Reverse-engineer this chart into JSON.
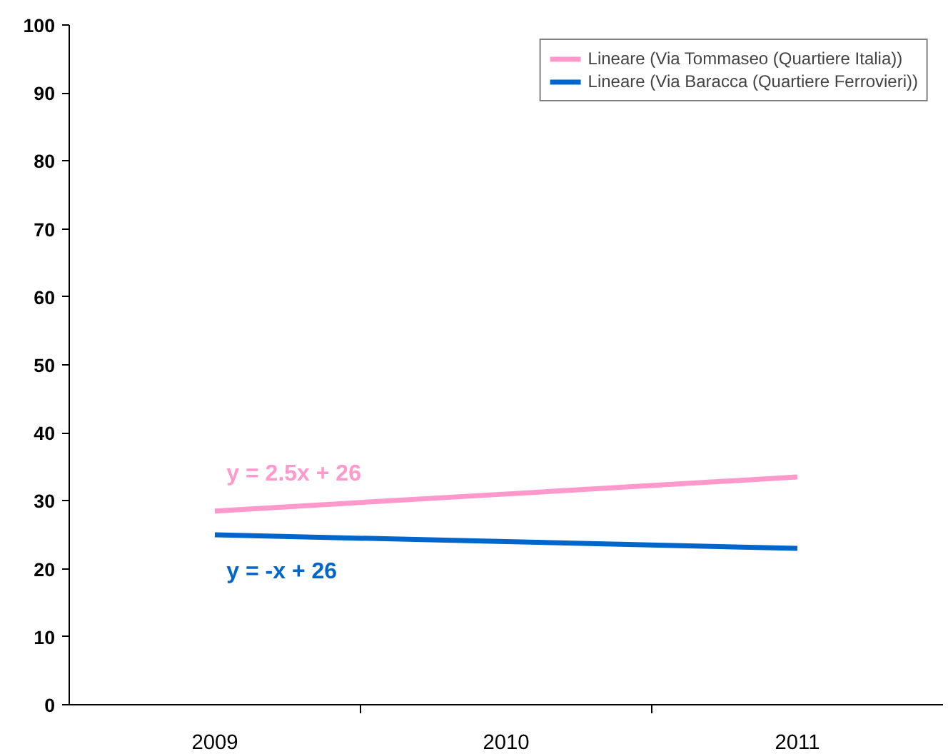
{
  "chart_data": {
    "type": "line",
    "categories": [
      "2009",
      "2010",
      "2011"
    ],
    "series": [
      {
        "name": "Lineare (Via Tommaseo (Quartiere Italia))",
        "color": "#ff99cc",
        "values": [
          28.5,
          31,
          33.5
        ]
      },
      {
        "name": "Lineare (Via Baracca (Quartiere Ferrovieri))",
        "color": "#0066cc",
        "values": [
          25,
          24,
          23
        ]
      }
    ],
    "annotations": [
      "y = 2.5x + 26",
      "y = -x + 26"
    ],
    "ylim": [
      0,
      100
    ],
    "yticks": [
      0,
      10,
      20,
      30,
      40,
      50,
      60,
      70,
      80,
      90,
      100
    ],
    "grid": false,
    "legend": "top right",
    "marker": "none",
    "line_style": "solid"
  }
}
